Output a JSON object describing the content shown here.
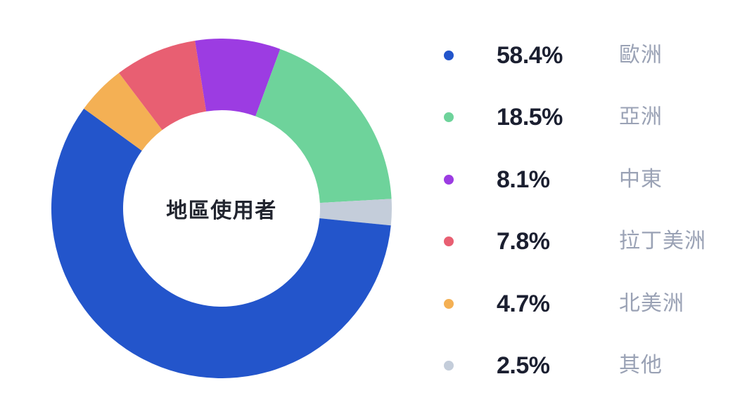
{
  "background_color": "#ffffff",
  "chart_data": {
    "type": "pie",
    "subtype": "donut",
    "title": "地區使用者",
    "legend_position": "right",
    "grid": false,
    "total": 100,
    "series": [
      {
        "id": "europe",
        "label": "歐洲",
        "value": 58.4,
        "pct_label": "58.4%",
        "color": "#2355cb"
      },
      {
        "id": "asia",
        "label": "亞洲",
        "value": 18.5,
        "pct_label": "18.5%",
        "color": "#6ed39b"
      },
      {
        "id": "middle-east",
        "label": "中東",
        "value": 8.1,
        "pct_label": "8.1%",
        "color": "#9c3ce2"
      },
      {
        "id": "latin-america",
        "label": "拉丁美洲",
        "value": 7.8,
        "pct_label": "7.8%",
        "color": "#e85f72"
      },
      {
        "id": "north-america",
        "label": "北美洲",
        "value": 4.7,
        "pct_label": "4.7%",
        "color": "#f4b054"
      },
      {
        "id": "other",
        "label": "其他",
        "value": 2.5,
        "pct_label": "2.5%",
        "color": "#c4cdda"
      }
    ],
    "donut_layout": {
      "start_angle_deg_from_top": -9,
      "direction": "clockwise",
      "draw_order": [
        "middle-east",
        "asia",
        "other",
        "europe",
        "north-america",
        "latin-america"
      ],
      "inner_radius_ratio": 0.58,
      "hole_color": "#ffffff"
    },
    "text_colors": {
      "percent": "#1b1f30",
      "label": "#9aa2b5",
      "center_title": "#22252f"
    }
  }
}
